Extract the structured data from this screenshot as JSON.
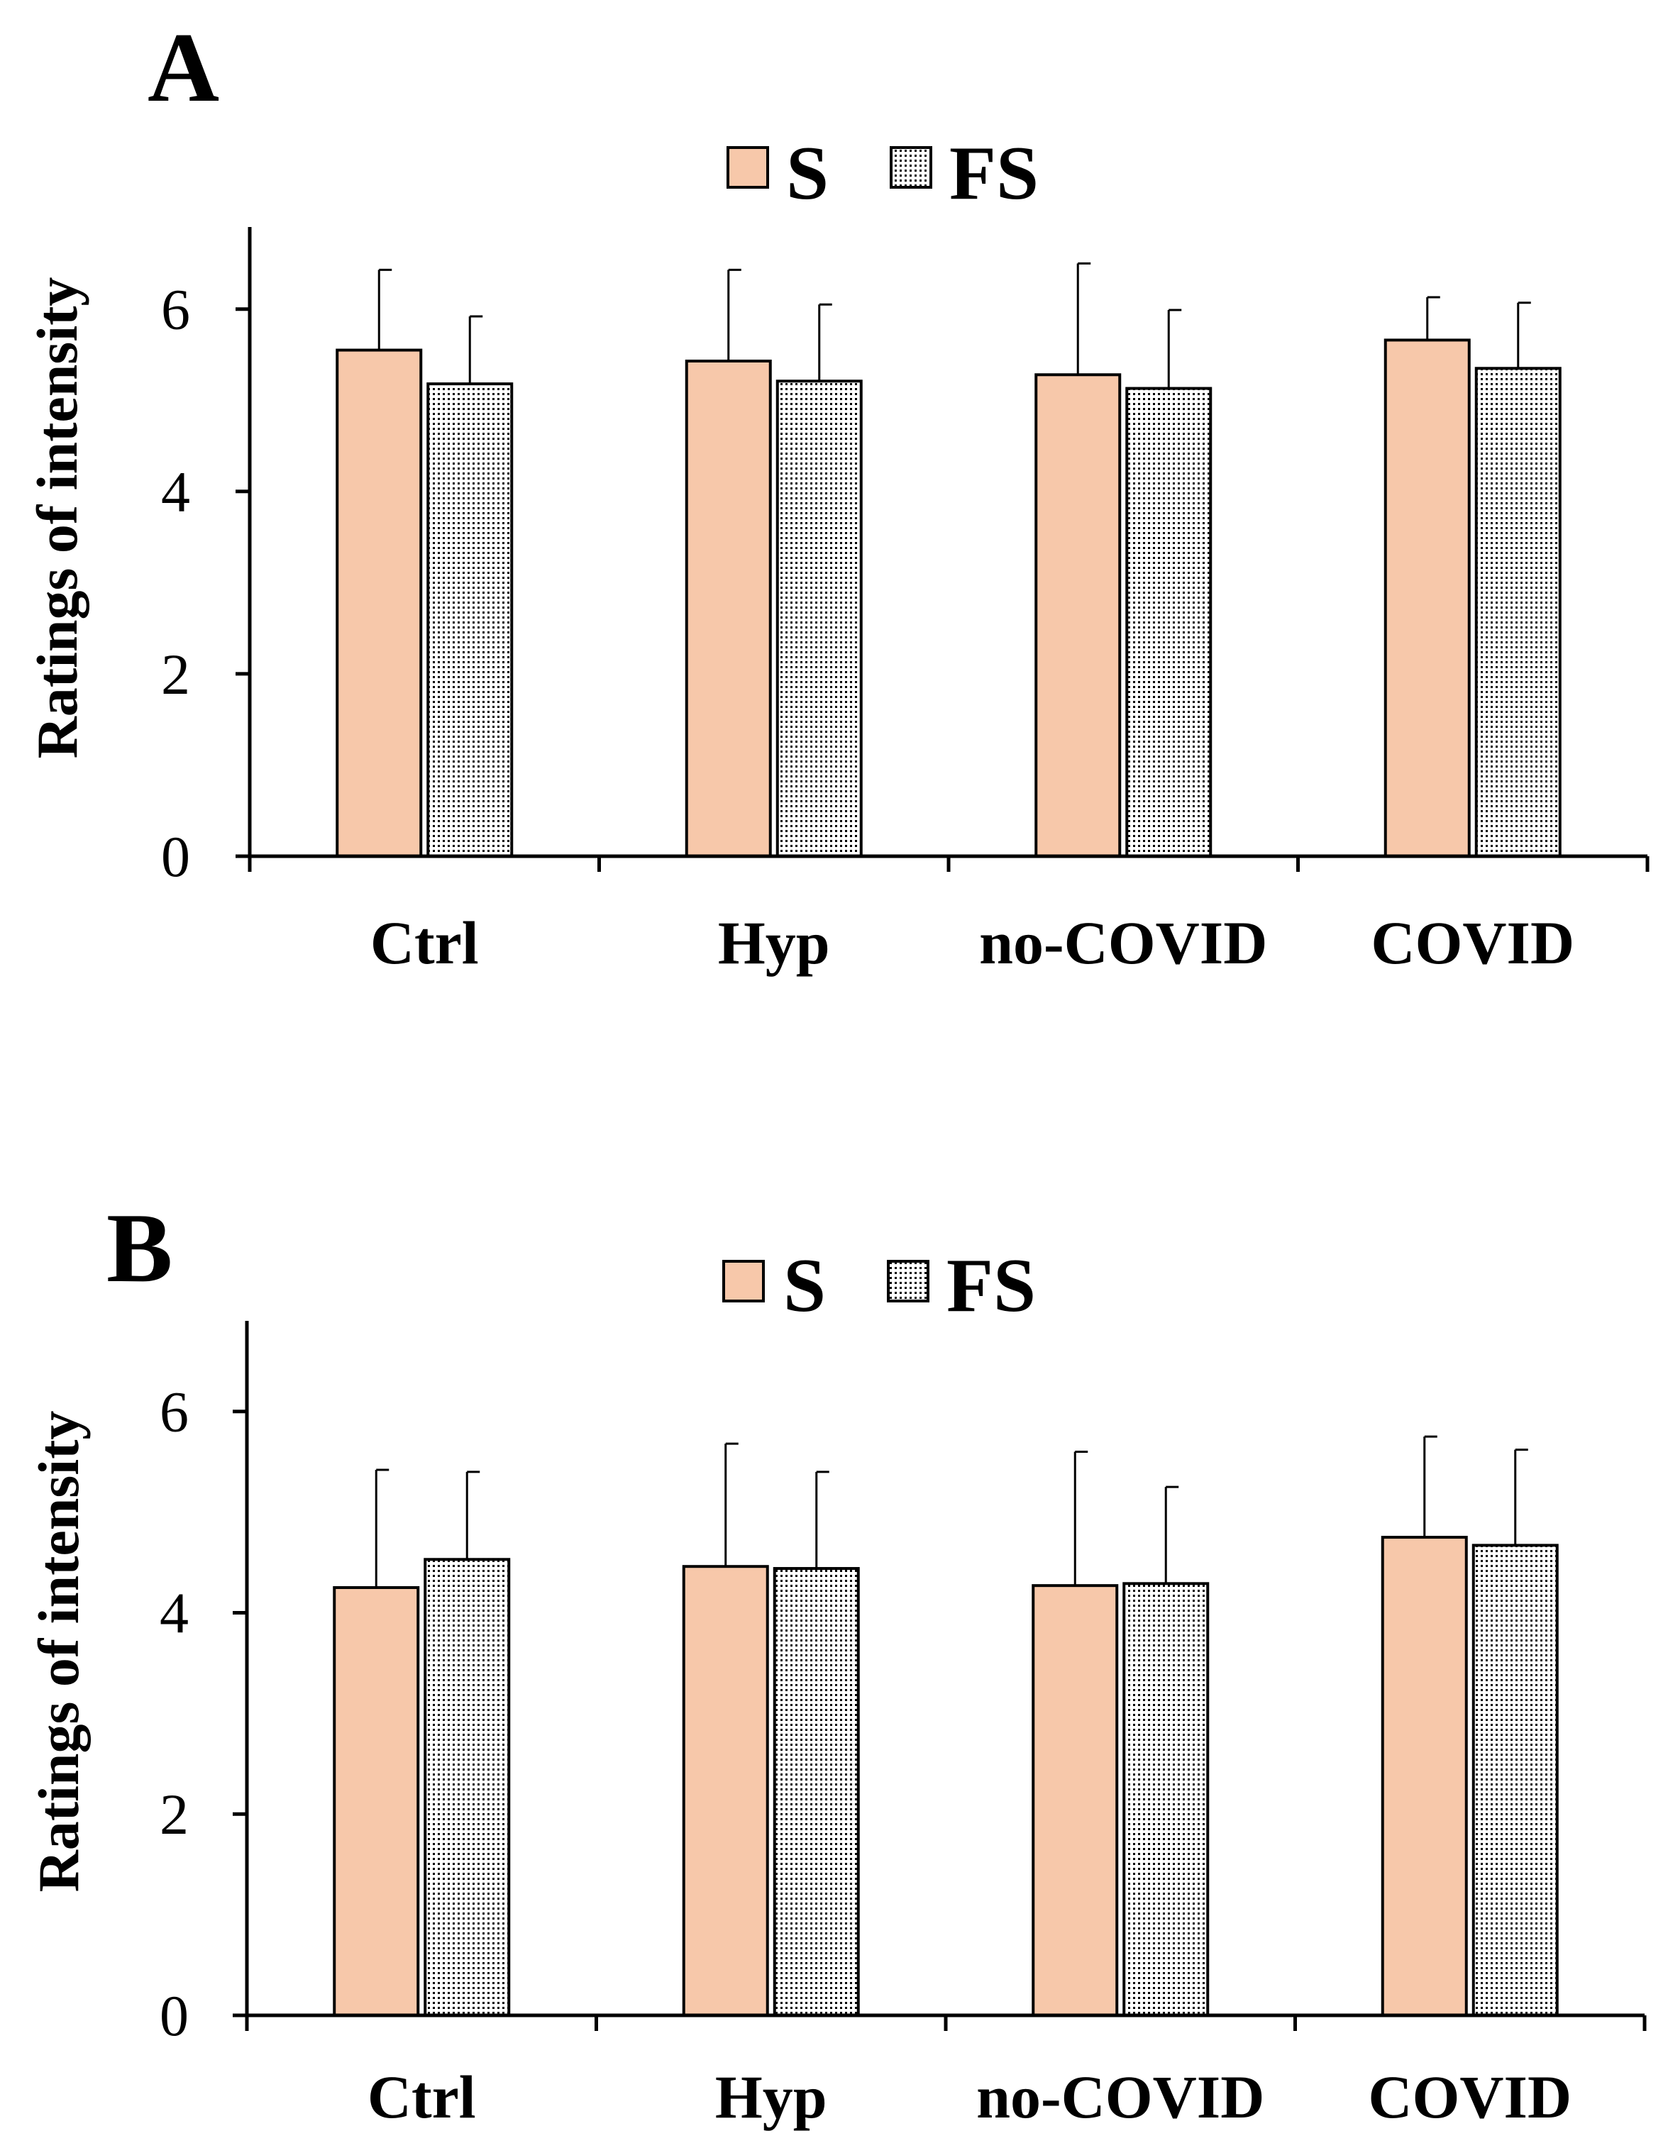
{
  "colors": {
    "s_fill": "#f7c8aa",
    "stroke": "#000000"
  },
  "legend": {
    "s_label": "S",
    "fs_label": "FS"
  },
  "chart_data": [
    {
      "type": "bar",
      "panel_label": "A",
      "categories": [
        "Ctrl",
        "Hyp",
        "no-COVID",
        "COVID"
      ],
      "ylabel": "Ratings of intensity",
      "xlabel": "",
      "ylim": [
        0,
        6.9
      ],
      "yticks": [
        0,
        2,
        4,
        6
      ],
      "legend_position": "top-center",
      "series": [
        {
          "name": "S",
          "values": [
            5.55,
            5.43,
            5.28,
            5.66
          ],
          "errors": [
            0.88,
            1.0,
            1.22,
            0.47
          ]
        },
        {
          "name": "FS",
          "values": [
            5.18,
            5.21,
            5.13,
            5.35
          ],
          "errors": [
            0.74,
            0.84,
            0.86,
            0.72
          ]
        }
      ]
    },
    {
      "type": "bar",
      "panel_label": "B",
      "categories": [
        "Ctrl",
        "Hyp",
        "no-COVID",
        "COVID"
      ],
      "ylabel": "Ratings of intensity",
      "xlabel": "",
      "ylim": [
        0,
        6.9
      ],
      "yticks": [
        0,
        2,
        4,
        6
      ],
      "legend_position": "top-center",
      "series": [
        {
          "name": "S",
          "values": [
            4.25,
            4.46,
            4.27,
            4.75
          ],
          "errors": [
            1.17,
            1.22,
            1.33,
            1.0
          ]
        },
        {
          "name": "FS",
          "values": [
            4.53,
            4.44,
            4.29,
            4.67
          ],
          "errors": [
            0.87,
            0.96,
            0.96,
            0.95
          ]
        }
      ]
    }
  ]
}
